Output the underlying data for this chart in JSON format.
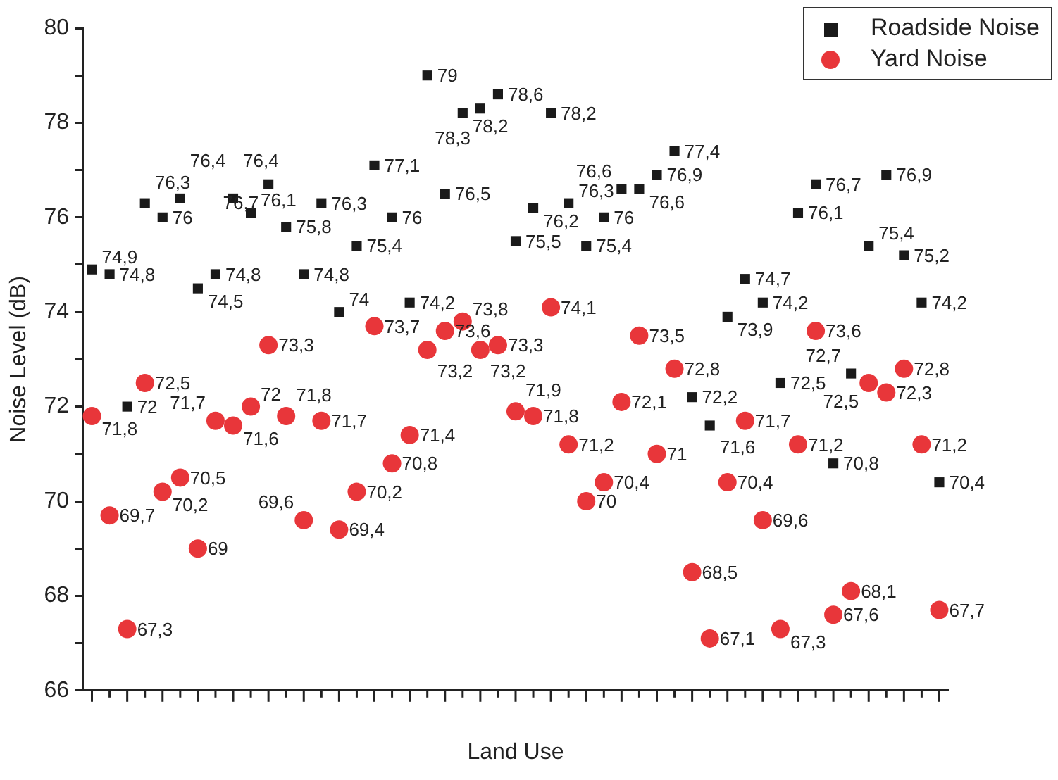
{
  "chart_data": {
    "type": "scatter",
    "xlabel": "Land Use",
    "ylabel": "Noise Level (dB)",
    "categories": [
      null,
      null,
      null,
      null,
      null,
      null,
      null,
      null,
      null,
      null,
      null,
      null,
      null,
      null,
      null,
      null,
      null,
      null,
      null,
      null,
      null,
      null,
      null,
      null,
      null,
      null,
      null,
      null,
      null,
      null,
      null,
      null,
      null,
      null,
      null,
      null,
      null,
      null,
      null,
      null,
      null,
      null,
      null,
      null,
      null,
      null,
      null,
      null,
      null
    ],
    "ylim": [
      66,
      80
    ],
    "yticks": [
      66,
      {
        "value": 67,
        "label": null
      },
      68,
      {
        "value": 69,
        "label": null
      },
      70,
      {
        "value": 71,
        "label": null
      },
      72,
      {
        "value": 73,
        "label": null
      },
      74,
      {
        "value": 75,
        "label": null
      },
      76,
      {
        "value": 77,
        "label": null
      },
      78,
      {
        "value": 79,
        "label": null
      },
      80
    ],
    "grid": false,
    "legend": "top right",
    "series": [
      {
        "name": "Roadside Noise",
        "color": "#1a1a1a",
        "marker": "square",
        "values": [
          74.9,
          74.8,
          72,
          76.3,
          76,
          76.4,
          74.5,
          74.8,
          76.4,
          76.1,
          76.7,
          75.8,
          74.8,
          76.3,
          74,
          75.4,
          77.1,
          76,
          74.2,
          79,
          76.5,
          78.2,
          78.3,
          78.6,
          75.5,
          76.2,
          78.2,
          76.3,
          75.4,
          76,
          76.6,
          76.6,
          76.9,
          77.4,
          72.2,
          71.6,
          73.9,
          74.7,
          74.2,
          72.5,
          76.1,
          76.7,
          70.8,
          72.7,
          75.4,
          76.9,
          75.2,
          74.2,
          70.4
        ],
        "value_labels": [
          "74,9",
          "74,8",
          "72",
          "76,3",
          "76",
          "76,4",
          "74,5",
          "74,8",
          "76,4",
          "76,1",
          "76,7",
          "75,8",
          "74,8",
          "76,3",
          "74",
          "75,4",
          "77,1",
          "76",
          "74,2",
          "79",
          "76,5",
          "78,2",
          "78,3",
          "78,6",
          "75,5",
          "76,2",
          "78,2",
          "76,3",
          "75,4",
          "76",
          "76,6",
          "76,6",
          "76,9",
          "77,4",
          "72,2",
          "71,6",
          "73,9",
          "74,7",
          "74,2",
          "72,5",
          "76,1",
          "76,7",
          "70,8",
          "72,7",
          "75,4",
          "76,9",
          "75,2",
          "74,2",
          "70,4"
        ]
      },
      {
        "name": "Yard Noise",
        "color": "#e8363a",
        "marker": "circle",
        "values": [
          71.8,
          69.7,
          67.3,
          72.5,
          70.2,
          70.5,
          69,
          71.7,
          71.6,
          72,
          73.3,
          71.8,
          69.6,
          71.7,
          69.4,
          70.2,
          73.7,
          70.8,
          71.4,
          73.2,
          73.6,
          73.8,
          73.2,
          73.3,
          71.9,
          71.8,
          74.1,
          71.2,
          70,
          70.4,
          72.1,
          73.5,
          71,
          72.8,
          68.5,
          67.1,
          70.4,
          71.7,
          69.6,
          67.3,
          71.2,
          73.6,
          67.6,
          68.1,
          72.5,
          72.3,
          72.8,
          71.2,
          67.7
        ],
        "value_labels": [
          "71,8",
          "69,7",
          "67,3",
          "72,5",
          "70,2",
          "70,5",
          "69",
          "71,7",
          "71,6",
          "72",
          "73,3",
          "71,8",
          "69,6",
          "71,7",
          "69,4",
          "70,2",
          "73,7",
          "70,8",
          "71,4",
          "73,2",
          "73,6",
          "73,8",
          "73,2",
          "73,3",
          "71,9",
          "71,8",
          "74,1",
          "71,2",
          "70",
          "70,4",
          "72,1",
          "73,5",
          "71",
          "72,8",
          "68,5",
          "67,1",
          "70,4",
          "71,7",
          "69,6",
          "67,3",
          "71,2",
          "73,6",
          "67,6",
          "68,1",
          "72,5",
          "72,3",
          "72,8",
          "71,2",
          "67,7"
        ]
      }
    ]
  }
}
